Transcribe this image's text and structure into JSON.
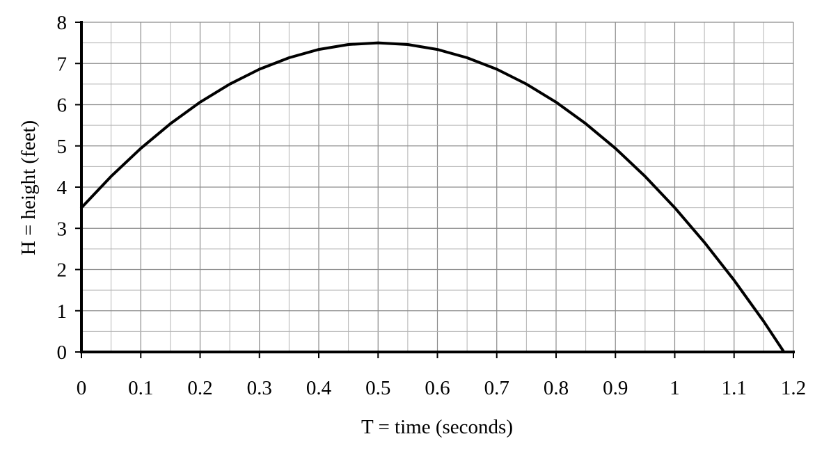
{
  "chart_data": {
    "type": "line",
    "title": "",
    "xlabel": "T = time (seconds)",
    "ylabel": "H = height (feet)",
    "xlim": [
      0,
      1.2
    ],
    "ylim": [
      0,
      8
    ],
    "x_ticks": [
      "0",
      "0.1",
      "0.2",
      "0.3",
      "0.4",
      "0.5",
      "0.6",
      "0.7",
      "0.8",
      "0.9",
      "1",
      "1.1",
      "1.2"
    ],
    "y_ticks": [
      "0",
      "1",
      "2",
      "3",
      "4",
      "5",
      "6",
      "7",
      "8"
    ],
    "grid": true,
    "legend": "none",
    "line_color": "#000000",
    "series": [
      {
        "x": [
          0,
          0.05,
          0.1,
          0.15,
          0.2,
          0.25,
          0.3,
          0.35,
          0.4,
          0.45,
          0.5,
          0.55,
          0.6,
          0.65,
          0.7,
          0.75,
          0.8,
          0.85,
          0.9,
          0.95,
          1.0,
          1.05,
          1.1,
          1.15,
          1.184
        ],
        "values": [
          3.5,
          4.26,
          4.94,
          5.54,
          6.06,
          6.5,
          6.86,
          7.14,
          7.34,
          7.46,
          7.5,
          7.46,
          7.34,
          7.14,
          6.86,
          6.5,
          6.06,
          5.54,
          4.94,
          4.26,
          3.5,
          2.66,
          1.74,
          0.74,
          0.0
        ]
      }
    ]
  }
}
